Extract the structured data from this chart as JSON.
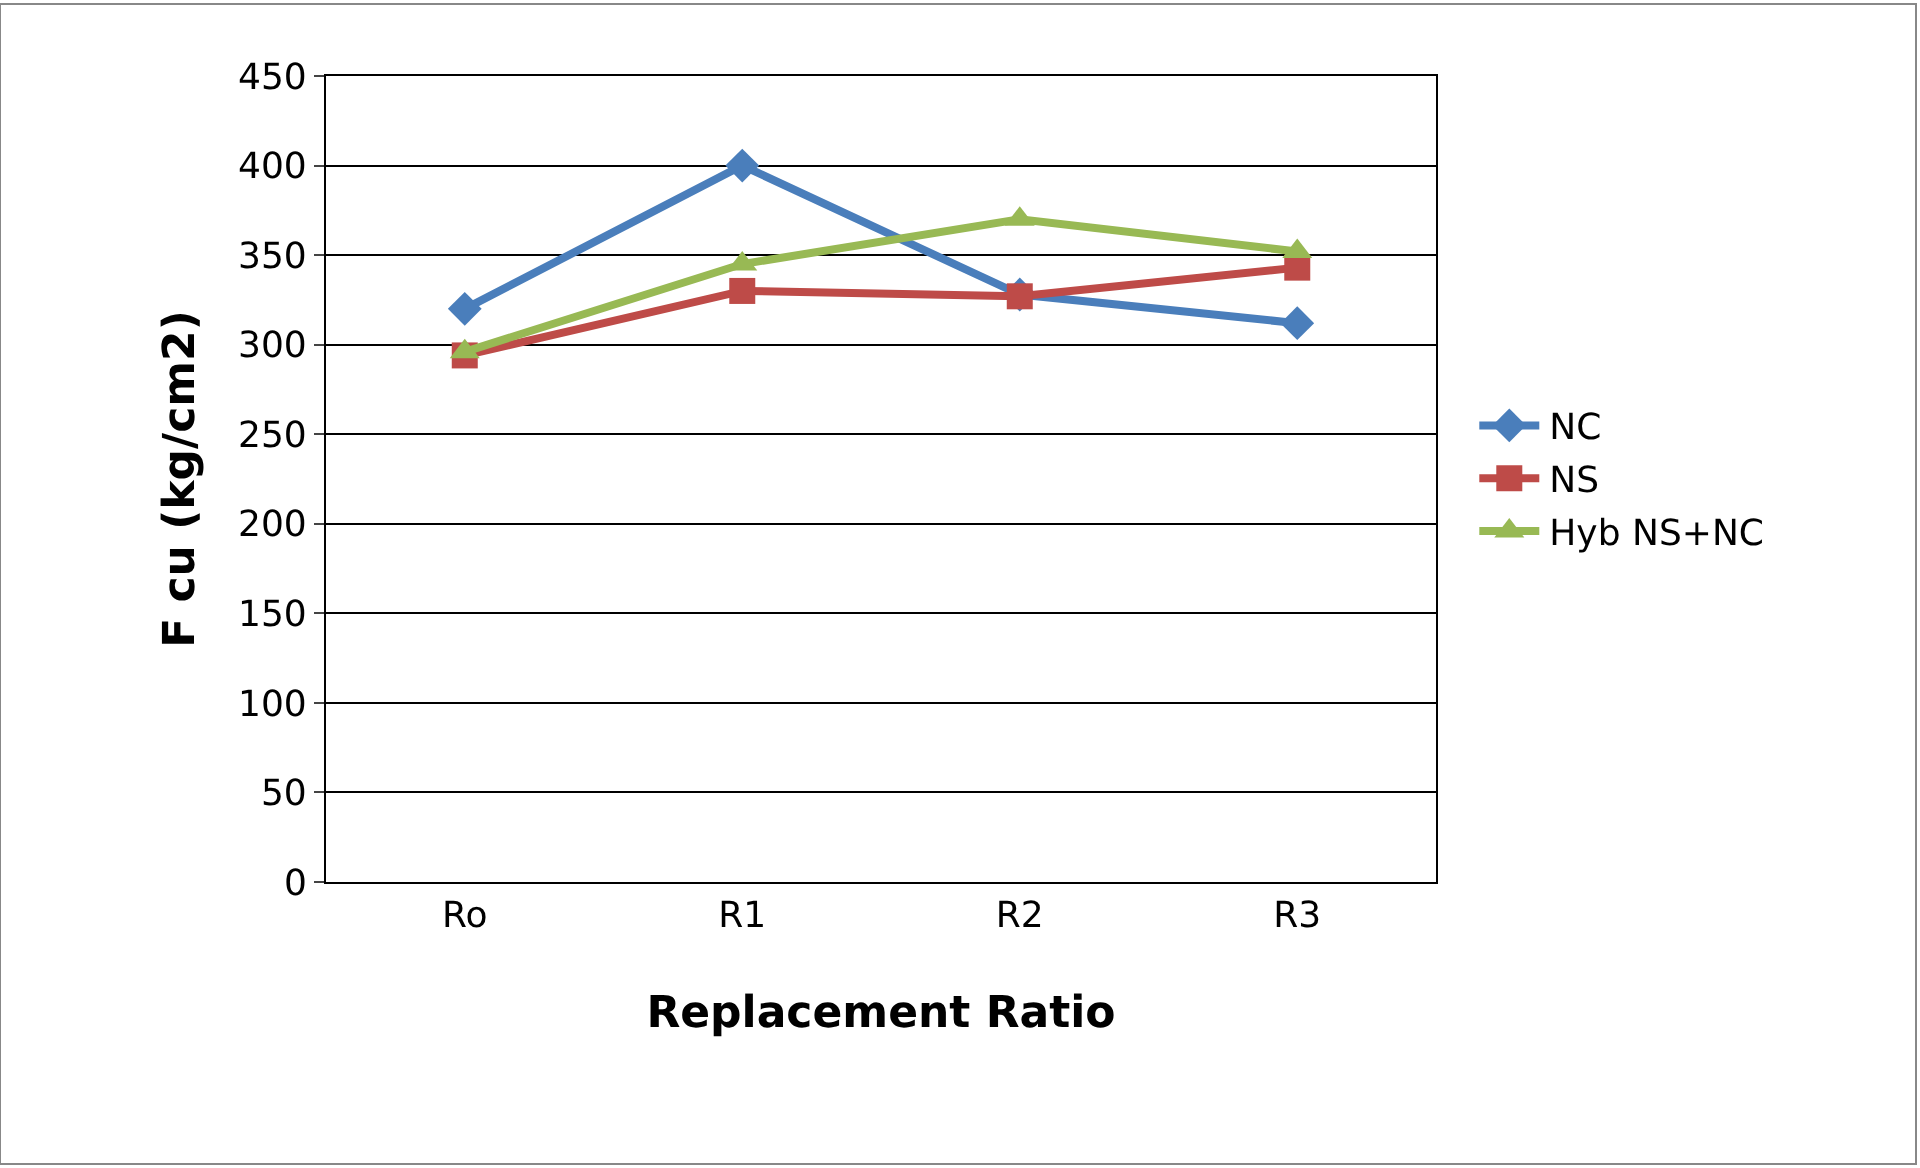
{
  "chart_data": {
    "type": "line",
    "xlabel": "Replacement Ratio",
    "ylabel": "F cu (kg/cm2)",
    "categories": [
      "Ro",
      "R1",
      "R2",
      "R3"
    ],
    "series": [
      {
        "name": "NC",
        "color": "#4a7ebb",
        "marker": "diamond",
        "values": [
          320,
          400,
          328,
          312
        ]
      },
      {
        "name": "NS",
        "color": "#be4b48",
        "marker": "square",
        "values": [
          294,
          330,
          327,
          343
        ]
      },
      {
        "name": "Hyb NS+NC",
        "color": "#98b954",
        "marker": "triangle",
        "values": [
          296,
          345,
          370,
          352
        ]
      }
    ],
    "ylim": [
      0,
      450
    ],
    "yticks": [
      0,
      50,
      100,
      150,
      200,
      250,
      300,
      350,
      400,
      450
    ],
    "grid": "y",
    "legend": "right",
    "line_style": "solid"
  }
}
